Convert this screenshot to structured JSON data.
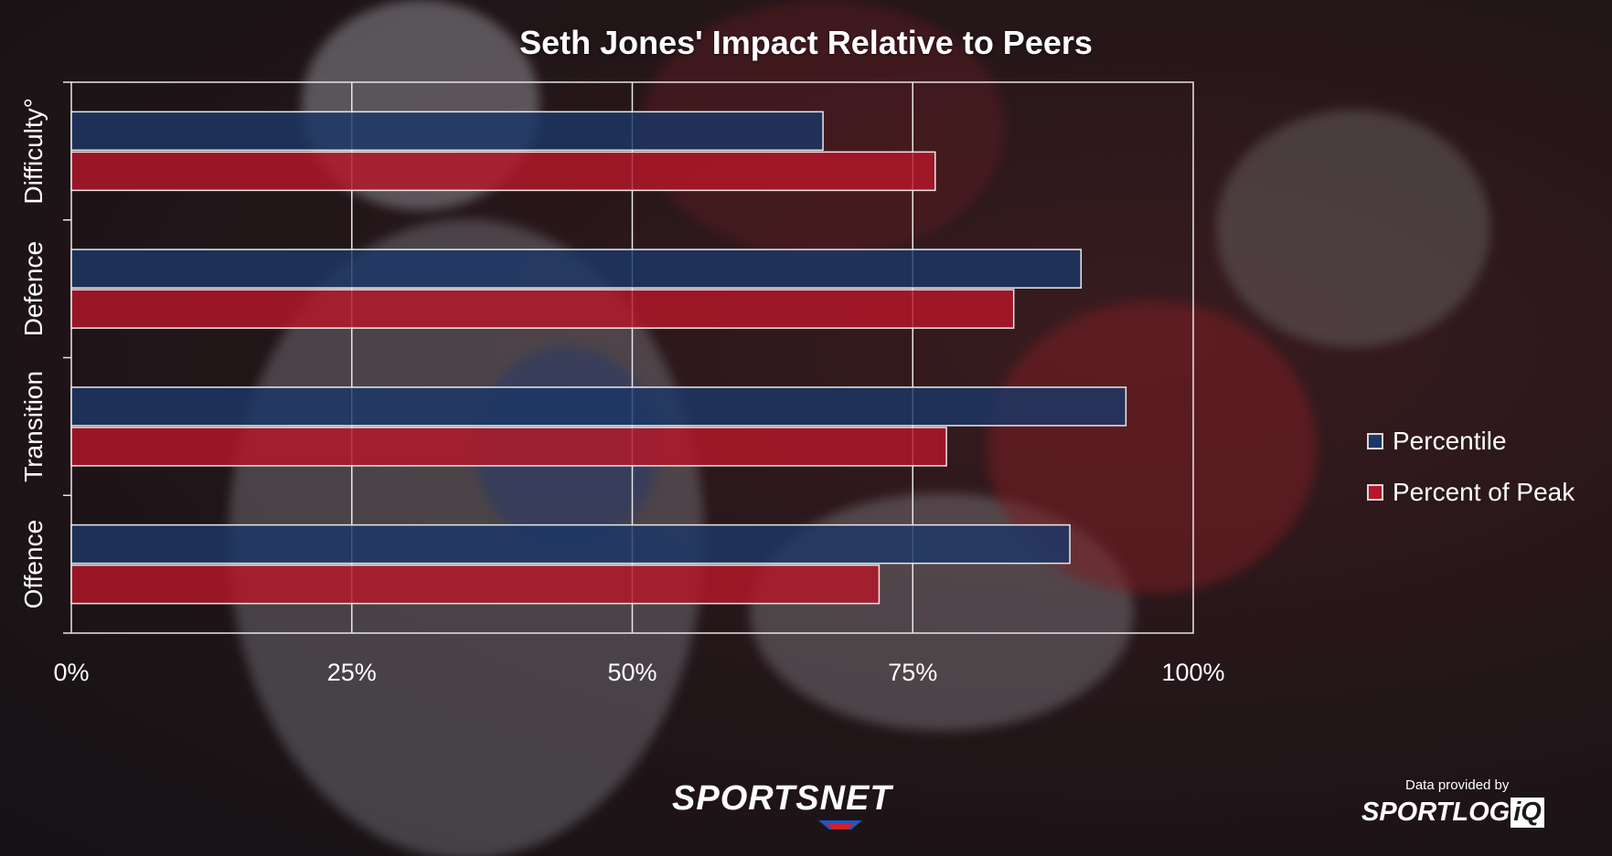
{
  "colors": {
    "percentile": "#1c3766",
    "percent_of_peak": "#b5172a",
    "grid": "#e6e6e6",
    "text": "#ffffff"
  },
  "chart_data": {
    "type": "bar",
    "orientation": "horizontal",
    "title": "Seth Jones' Impact Relative to Peers",
    "categories": [
      "Difficulty°",
      "Defence",
      "Transition",
      "Offence"
    ],
    "series": [
      {
        "name": "Percentile",
        "values": [
          67,
          90,
          94,
          89
        ]
      },
      {
        "name": "Percent of Peak",
        "values": [
          77,
          84,
          78,
          72
        ]
      }
    ],
    "x_ticks": [
      "0%",
      "25%",
      "50%",
      "75%",
      "100%"
    ],
    "xlim": [
      0,
      100
    ],
    "grid": true,
    "legend_position": "right"
  },
  "branding": {
    "sportsnet": "SPORTSNET",
    "data_provided_by": "Data provided by",
    "sportlogiq_text": "SPORTLOG",
    "sportlogiq_box": "iQ"
  }
}
